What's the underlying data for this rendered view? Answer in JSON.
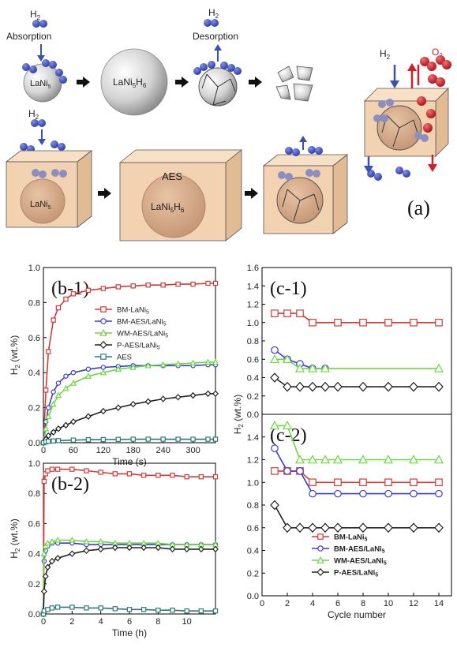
{
  "schematic": {
    "h2": "H",
    "h2_sub": "2",
    "o2": "O",
    "o2_sub": "2",
    "absorption": "Absorption",
    "desorption": "Desorption",
    "lani5": "LaNi",
    "lani5_sub": "5",
    "lani5h6": "LaNi",
    "lani5h6_sub1": "5",
    "lani5h6_h": "H",
    "lani5h6_sub2": "6",
    "aes": "AES",
    "panel": "(a)",
    "colors": {
      "h2": "#3b4fb4",
      "o2": "#d0202a",
      "box": "#f2d2b0",
      "particle": "#d6ab8a"
    }
  },
  "chart_data": [
    {
      "type": "line",
      "panel_label": "(b-1)",
      "xlabel": "Time (s)",
      "ylabel": "H",
      "ylabel_sub": "2",
      "ylabel_tail": " (wt.%)",
      "xlim": [
        0,
        345
      ],
      "ylim": [
        0,
        1.0
      ],
      "xticks": [
        "0",
        "60",
        "120",
        "180",
        "240",
        "300"
      ],
      "yticks": [
        "0.0",
        "0.2",
        "0.4",
        "0.6",
        "0.8",
        "1.0"
      ],
      "legend_position": "center-right",
      "series": [
        {
          "name": "BM-LaNi",
          "sub": "5",
          "color": "#d43a36",
          "marker": "square",
          "x": [
            0,
            5,
            10,
            20,
            30,
            45,
            60,
            90,
            120,
            150,
            180,
            210,
            240,
            270,
            300,
            330,
            345
          ],
          "y": [
            0,
            0.3,
            0.52,
            0.7,
            0.77,
            0.82,
            0.85,
            0.87,
            0.88,
            0.89,
            0.895,
            0.9,
            0.9,
            0.905,
            0.905,
            0.91,
            0.91
          ]
        },
        {
          "name": "BM-AES/LaNi",
          "sub": "5",
          "color": "#3b3bd6",
          "marker": "circle",
          "x": [
            0,
            5,
            10,
            20,
            30,
            45,
            60,
            90,
            120,
            150,
            180,
            210,
            240,
            270,
            300,
            330,
            345
          ],
          "y": [
            0,
            0.12,
            0.2,
            0.29,
            0.34,
            0.38,
            0.4,
            0.42,
            0.43,
            0.435,
            0.44,
            0.44,
            0.44,
            0.44,
            0.44,
            0.445,
            0.445
          ]
        },
        {
          "name": "WM-AES/LaNi",
          "sub": "5",
          "color": "#6cd840",
          "marker": "triangle",
          "x": [
            0,
            5,
            10,
            20,
            30,
            45,
            60,
            90,
            120,
            150,
            180,
            210,
            240,
            270,
            300,
            330,
            345
          ],
          "y": [
            0,
            0.08,
            0.15,
            0.22,
            0.27,
            0.31,
            0.34,
            0.38,
            0.4,
            0.42,
            0.43,
            0.44,
            0.445,
            0.45,
            0.455,
            0.46,
            0.46
          ]
        },
        {
          "name": "P-AES/LaNi",
          "sub": "5",
          "color": "#222222",
          "marker": "diamond",
          "x": [
            0,
            5,
            10,
            20,
            30,
            45,
            60,
            90,
            120,
            150,
            180,
            210,
            240,
            270,
            300,
            330,
            345
          ],
          "y": [
            0,
            0.02,
            0.04,
            0.06,
            0.08,
            0.1,
            0.12,
            0.15,
            0.18,
            0.2,
            0.22,
            0.235,
            0.25,
            0.26,
            0.27,
            0.28,
            0.28
          ]
        },
        {
          "name": "AES",
          "sub": "",
          "color": "#2e7a78",
          "marker": "square",
          "x": [
            0,
            5,
            10,
            20,
            30,
            60,
            90,
            120,
            150,
            180,
            210,
            240,
            270,
            300,
            330,
            345
          ],
          "y": [
            0,
            0.005,
            0.008,
            0.01,
            0.012,
            0.015,
            0.017,
            0.018,
            0.019,
            0.02,
            0.02,
            0.02,
            0.02,
            0.02,
            0.02,
            0.02
          ]
        }
      ]
    },
    {
      "type": "line",
      "panel_label": "(b-2)",
      "xlabel": "Time (h)",
      "ylabel": "H",
      "ylabel_sub": "2",
      "ylabel_tail": " (wt.%)",
      "xlim": [
        0,
        12
      ],
      "ylim": [
        0,
        1.0
      ],
      "xticks": [
        "0",
        "2",
        "4",
        "6",
        "8",
        "10"
      ],
      "yticks": [
        "0.0",
        "0.2",
        "0.4",
        "0.6",
        "0.8",
        "1.0"
      ],
      "series": [
        {
          "name": "BM-LaNi",
          "sub": "5",
          "color": "#d43a36",
          "marker": "square",
          "x": [
            0,
            0.05,
            0.15,
            0.3,
            0.6,
            1,
            2,
            3,
            4,
            5,
            6,
            7,
            8,
            9,
            10,
            11,
            12
          ],
          "y": [
            0,
            0.88,
            0.93,
            0.95,
            0.96,
            0.96,
            0.96,
            0.95,
            0.94,
            0.93,
            0.93,
            0.92,
            0.92,
            0.92,
            0.91,
            0.91,
            0.91
          ]
        },
        {
          "name": "BM-AES/LaNi",
          "sub": "5",
          "color": "#3b3bd6",
          "marker": "circle",
          "x": [
            0,
            0.05,
            0.15,
            0.3,
            0.6,
            1,
            2,
            3,
            4,
            5,
            6,
            7,
            8,
            9,
            10,
            11,
            12
          ],
          "y": [
            0,
            0.35,
            0.42,
            0.45,
            0.47,
            0.47,
            0.47,
            0.46,
            0.46,
            0.46,
            0.46,
            0.46,
            0.46,
            0.46,
            0.46,
            0.46,
            0.46
          ]
        },
        {
          "name": "WM-AES/LaNi",
          "sub": "5",
          "color": "#6cd840",
          "marker": "triangle",
          "x": [
            0,
            0.05,
            0.15,
            0.3,
            0.6,
            1,
            2,
            3,
            4,
            5,
            6,
            7,
            8,
            9,
            10,
            11,
            12
          ],
          "y": [
            0,
            0.4,
            0.45,
            0.47,
            0.48,
            0.49,
            0.49,
            0.48,
            0.48,
            0.47,
            0.47,
            0.47,
            0.47,
            0.46,
            0.46,
            0.46,
            0.46
          ]
        },
        {
          "name": "P-AES/LaNi",
          "sub": "5",
          "color": "#222222",
          "marker": "diamond",
          "x": [
            0,
            0.05,
            0.15,
            0.3,
            0.6,
            1,
            2,
            3,
            4,
            5,
            6,
            7,
            8,
            9,
            10,
            11,
            12
          ],
          "y": [
            0,
            0.15,
            0.25,
            0.31,
            0.35,
            0.37,
            0.4,
            0.42,
            0.43,
            0.44,
            0.44,
            0.44,
            0.44,
            0.43,
            0.43,
            0.43,
            0.43
          ]
        },
        {
          "name": "AES",
          "sub": "",
          "color": "#2e7a78",
          "marker": "square",
          "x": [
            0,
            0.05,
            0.3,
            0.6,
            1,
            2,
            3,
            4,
            5,
            6,
            7,
            8,
            9,
            10,
            11,
            12
          ],
          "y": [
            0,
            0.02,
            0.03,
            0.04,
            0.045,
            0.045,
            0.04,
            0.04,
            0.035,
            0.03,
            0.03,
            0.025,
            0.025,
            0.02,
            0.02,
            0.02
          ]
        }
      ]
    },
    {
      "type": "line",
      "panel_label": "(c-1)",
      "xlabel": "",
      "xlim": [
        0,
        15
      ],
      "ylim": [
        0,
        1.6
      ],
      "xticks": [],
      "yticks": [
        "0.0",
        "0.2",
        "0.4",
        "0.6",
        "0.8",
        "1.0",
        "1.2",
        "1.4",
        "1.6"
      ],
      "series": [
        {
          "name": "BM-LaNi",
          "sub": "5",
          "color": "#d43a36",
          "marker": "square",
          "x": [
            1,
            2,
            3,
            4,
            6,
            8,
            10,
            12,
            14
          ],
          "y": [
            1.1,
            1.1,
            1.1,
            1.0,
            1.0,
            1.0,
            1.0,
            1.0,
            1.0
          ]
        },
        {
          "name": "BM-AES/LaNi",
          "sub": "5",
          "color": "#3b3bd6",
          "marker": "circle",
          "x": [
            1,
            2,
            3,
            4,
            5
          ],
          "y": [
            0.7,
            0.6,
            0.55,
            0.5,
            0.5
          ]
        },
        {
          "name": "WM-AES/LaNi",
          "sub": "5",
          "color": "#6cd840",
          "marker": "triangle",
          "x": [
            1,
            2,
            3,
            4,
            5,
            14
          ],
          "y": [
            0.6,
            0.6,
            0.5,
            0.5,
            0.5,
            0.5
          ]
        },
        {
          "name": "P-AES/LaNi",
          "sub": "5",
          "color": "#222222",
          "marker": "diamond",
          "x": [
            1,
            2,
            3,
            4,
            5,
            6,
            8,
            10,
            12,
            14
          ],
          "y": [
            0.4,
            0.3,
            0.3,
            0.3,
            0.3,
            0.3,
            0.3,
            0.3,
            0.3,
            0.3
          ]
        }
      ]
    },
    {
      "type": "line",
      "panel_label": "(c-2)",
      "xlabel": "Cycle number",
      "ylabel": "H",
      "ylabel_sub": "2",
      "ylabel_tail": " (wt.%)",
      "xlim": [
        0,
        15
      ],
      "ylim": [
        0,
        1.6
      ],
      "xticks": [
        "0",
        "2",
        "4",
        "6",
        "8",
        "10",
        "12",
        "14"
      ],
      "yticks": [
        "0.0",
        "0.2",
        "0.4",
        "0.6",
        "0.8",
        "1.0",
        "1.2",
        "1.4"
      ],
      "legend_position": "bottom-left",
      "series": [
        {
          "name": "BM-LaNi",
          "sub": "5",
          "color": "#d43a36",
          "marker": "square",
          "x": [
            1,
            2,
            3,
            4,
            6,
            8,
            10,
            12,
            14
          ],
          "y": [
            1.1,
            1.1,
            1.1,
            1.0,
            1.0,
            1.0,
            1.0,
            1.0,
            1.0
          ]
        },
        {
          "name": "BM-AES/LaNi",
          "sub": "5",
          "color": "#3b3bd6",
          "marker": "circle",
          "x": [
            1,
            2,
            3,
            4,
            6,
            8,
            10,
            12,
            14
          ],
          "y": [
            1.3,
            1.1,
            1.1,
            0.9,
            0.9,
            0.9,
            0.9,
            0.9,
            0.9
          ]
        },
        {
          "name": "WM-AES/LaNi",
          "sub": "5",
          "color": "#6cd840",
          "marker": "triangle",
          "x": [
            1,
            2,
            3,
            4,
            5,
            6,
            8,
            10,
            12,
            14
          ],
          "y": [
            1.5,
            1.5,
            1.2,
            1.2,
            1.2,
            1.2,
            1.2,
            1.2,
            1.2,
            1.2
          ]
        },
        {
          "name": "P-AES/LaNi",
          "sub": "5",
          "color": "#222222",
          "marker": "diamond",
          "x": [
            1,
            2,
            3,
            4,
            5,
            6,
            8,
            10,
            12,
            14
          ],
          "y": [
            0.8,
            0.6,
            0.6,
            0.6,
            0.6,
            0.6,
            0.6,
            0.6,
            0.6,
            0.6
          ]
        }
      ]
    }
  ]
}
